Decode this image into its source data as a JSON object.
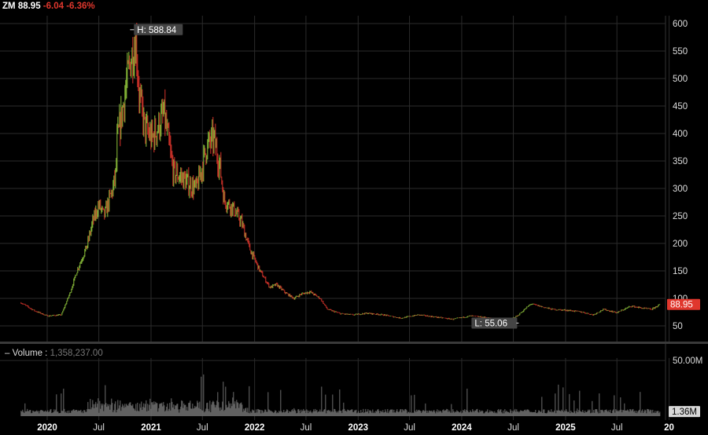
{
  "ticker": {
    "symbol": "ZM",
    "price": "88.95",
    "change": "-6.04",
    "change_pct": "-6.36%"
  },
  "volume_header": {
    "dash": "–",
    "label": "Volume",
    "sep": ":",
    "value": "1,358,237.00"
  },
  "colors": {
    "up": "#8fc43c",
    "down": "#d9342b",
    "grid": "#2b2b2b",
    "volume": "#6e6e6e",
    "last_price_bg": "#e0372d"
  },
  "chart_data": [
    {
      "type": "line",
      "title": "",
      "xlabel": "",
      "ylabel": "",
      "x_ticks": [
        "2020",
        "Jul",
        "2021",
        "Jul",
        "2022",
        "Jul",
        "2023",
        "Jul",
        "2024",
        "Jul",
        "2025",
        "Jul",
        "20"
      ],
      "y_ticks": [
        "600",
        "550",
        "500",
        "450",
        "400",
        "350",
        "300",
        "250",
        "200",
        "150",
        "100",
        "50"
      ],
      "ylim": [
        20,
        620
      ],
      "grid": true,
      "annotations": {
        "high": "H: 588.84",
        "low": "L: 55.06",
        "last": "88.95"
      },
      "series": [
        {
          "x": [
            "2019-10-01",
            "2019-11-15",
            "2020-01-02",
            "2020-02-20",
            "2020-03-23",
            "2020-04-15",
            "2020-05-20",
            "2020-06-10",
            "2020-07-01",
            "2020-07-20",
            "2020-08-20",
            "2020-08-31",
            "2020-09-02",
            "2020-09-15",
            "2020-10-19",
            "2020-11-09",
            "2020-11-20",
            "2020-12-10",
            "2021-01-05",
            "2021-02-16",
            "2021-03-20",
            "2021-04-20",
            "2021-05-20",
            "2021-06-10",
            "2021-07-01",
            "2021-07-15",
            "2021-08-10",
            "2021-09-01",
            "2021-09-15",
            "2021-10-15",
            "2021-11-15",
            "2021-12-15",
            "2022-01-20",
            "2022-02-24",
            "2022-03-20",
            "2022-04-20",
            "2022-05-20",
            "2022-06-15",
            "2022-07-15",
            "2022-08-20",
            "2022-09-15",
            "2022-11-01",
            "2022-12-15",
            "2023-02-01",
            "2023-04-01",
            "2023-06-01",
            "2023-08-01",
            "2023-10-01",
            "2023-12-01",
            "2024-02-01",
            "2024-04-01",
            "2024-05-01",
            "2024-06-01",
            "2024-07-15",
            "2024-09-01",
            "2024-10-01",
            "2024-11-15",
            "2025-01-15",
            "2025-03-01",
            "2025-04-08",
            "2025-05-15",
            "2025-07-01",
            "2025-08-20",
            "2025-10-01",
            "2025-11-01",
            "2025-11-20",
            "2025-12-01"
          ],
          "y": [
            92,
            78,
            68,
            70,
            112,
            150,
            195,
            240,
            270,
            250,
            300,
            330,
            380,
            420,
            530,
            570,
            470,
            410,
            390,
            435,
            330,
            320,
            305,
            300,
            340,
            375,
            390,
            340,
            280,
            265,
            240,
            190,
            150,
            120,
            125,
            110,
            100,
            108,
            112,
            100,
            80,
            72,
            70,
            73,
            70,
            64,
            70,
            66,
            62,
            68,
            65,
            62,
            58,
            68,
            90,
            86,
            80,
            78,
            75,
            70,
            80,
            74,
            86,
            82,
            80,
            86,
            89
          ]
        }
      ]
    },
    {
      "type": "bar",
      "title": "Volume",
      "y_ticks": [
        "50.00M"
      ],
      "last_label": "1.36M",
      "ylim": [
        0,
        55
      ],
      "units": "M"
    }
  ]
}
